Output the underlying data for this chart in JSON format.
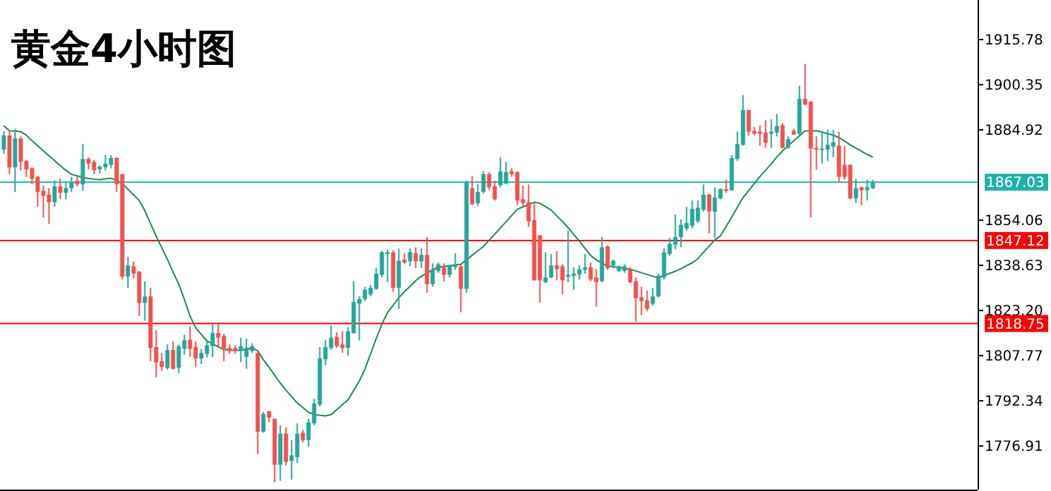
{
  "chart_data": {
    "type": "candlestick",
    "title": "黄金4小时图",
    "categories": [
      null,
      null,
      null,
      null,
      null,
      null,
      null,
      null,
      null,
      null,
      null,
      null,
      null,
      null,
      null,
      null,
      null,
      null,
      null,
      null,
      null,
      null,
      null,
      null,
      null,
      null,
      null,
      null,
      null,
      null,
      null,
      null,
      null,
      null,
      null,
      null,
      null,
      null,
      null,
      null,
      null,
      null,
      null,
      null,
      null,
      null,
      null,
      null,
      null,
      null,
      null,
      null,
      null,
      null,
      null,
      null,
      null,
      null,
      null,
      null,
      null,
      null,
      null,
      null,
      null,
      null,
      null,
      null,
      null,
      null,
      null,
      null,
      null,
      null,
      null,
      null,
      null,
      null,
      null,
      null,
      null,
      null,
      null,
      null,
      null,
      null,
      null,
      null,
      null,
      null,
      null,
      null,
      null,
      null,
      null,
      null,
      null,
      null,
      null,
      null,
      null,
      null,
      null,
      null,
      null,
      null,
      null,
      null,
      null,
      null,
      null,
      null,
      null,
      null,
      null,
      null,
      null,
      null,
      null,
      null,
      null,
      null,
      null,
      null,
      null,
      null,
      null,
      null,
      null,
      null,
      null,
      null,
      null,
      null,
      null,
      null,
      null,
      null,
      null,
      null,
      null,
      null,
      null,
      null,
      null,
      null,
      null,
      null,
      null,
      null,
      null,
      null,
      null,
      null,
      null
    ],
    "ohlc": [
      [
        1878.2,
        1884.5,
        1876.7,
        1883.0
      ],
      [
        1883.0,
        1884.6,
        1869.8,
        1872.1
      ],
      [
        1872.1,
        1885.3,
        1863.7,
        1882.0
      ],
      [
        1882.0,
        1882.7,
        1871.1,
        1874.0
      ],
      [
        1874.3,
        1874.7,
        1868.9,
        1871.4
      ],
      [
        1871.8,
        1872.1,
        1866.3,
        1868.2
      ],
      [
        1868.9,
        1869.2,
        1858.6,
        1863.7
      ],
      [
        1864.1,
        1866.0,
        1855.0,
        1862.4
      ],
      [
        1862.8,
        1865.0,
        1852.8,
        1860.2
      ],
      [
        1860.2,
        1867.6,
        1858.6,
        1865.6
      ],
      [
        1865.6,
        1868.2,
        1861.2,
        1863.4
      ],
      [
        1863.4,
        1867.2,
        1861.2,
        1865.0
      ],
      [
        1865.0,
        1868.9,
        1863.7,
        1866.9
      ],
      [
        1867.6,
        1869.2,
        1865.6,
        1866.3
      ],
      [
        1866.3,
        1880.1,
        1864.1,
        1875.0
      ],
      [
        1875.0,
        1875.6,
        1871.4,
        1873.4
      ],
      [
        1874.0,
        1874.7,
        1869.8,
        1871.1
      ],
      [
        1871.4,
        1872.7,
        1870.1,
        1872.4
      ],
      [
        1872.1,
        1876.3,
        1871.1,
        1873.4
      ],
      [
        1873.0,
        1876.3,
        1871.8,
        1875.3
      ],
      [
        1875.3,
        1875.6,
        1863.7,
        1866.3
      ],
      [
        1869.8,
        1869.8,
        1833.8,
        1834.8
      ],
      [
        1834.8,
        1841.5,
        1830.9,
        1838.6
      ],
      [
        1838.3,
        1839.9,
        1834.2,
        1835.8
      ],
      [
        1836.4,
        1836.7,
        1821.3,
        1825.8
      ],
      [
        1825.8,
        1833.2,
        1819.7,
        1828.0
      ],
      [
        1828.0,
        1830.9,
        1805.9,
        1810.4
      ],
      [
        1810.7,
        1816.5,
        1800.4,
        1805.5
      ],
      [
        1805.9,
        1808.7,
        1802.6,
        1803.9
      ],
      [
        1803.6,
        1811.6,
        1803.0,
        1809.7
      ],
      [
        1809.7,
        1812.6,
        1803.0,
        1803.3
      ],
      [
        1803.6,
        1811.6,
        1801.7,
        1811.0
      ],
      [
        1810.1,
        1814.9,
        1808.1,
        1813.0
      ],
      [
        1813.2,
        1817.8,
        1807.4,
        1810.1
      ],
      [
        1810.7,
        1812.6,
        1803.9,
        1806.8
      ],
      [
        1806.8,
        1810.0,
        1804.9,
        1808.7
      ],
      [
        1808.4,
        1812.6,
        1807.2,
        1811.3
      ],
      [
        1811.0,
        1818.4,
        1807.2,
        1815.5
      ],
      [
        1815.5,
        1818.4,
        1810.4,
        1813.9
      ],
      [
        1814.5,
        1815.2,
        1805.9,
        1810.1
      ],
      [
        1810.4,
        1811.6,
        1808.4,
        1809.4
      ],
      [
        1810.4,
        1811.3,
        1808.4,
        1809.4
      ],
      [
        1809.4,
        1813.9,
        1805.5,
        1811.0
      ],
      [
        1807.4,
        1813.6,
        1803.3,
        1810.4
      ],
      [
        1809.4,
        1812.0,
        1808.7,
        1811.0
      ],
      [
        1808.7,
        1808.7,
        1774.2,
        1781.8
      ],
      [
        1781.8,
        1788.6,
        1781.4,
        1787.9
      ],
      [
        1788.8,
        1788.8,
        1785.0,
        1786.6
      ],
      [
        1786.2,
        1786.2,
        1764.5,
        1770.5
      ],
      [
        1770.5,
        1784.0,
        1765.0,
        1781.1
      ],
      [
        1781.1,
        1783.3,
        1770.2,
        1771.5
      ],
      [
        1771.8,
        1778.9,
        1765.4,
        1773.7
      ],
      [
        1773.1,
        1784.6,
        1771.1,
        1781.1
      ],
      [
        1781.4,
        1782.4,
        1778.2,
        1778.9
      ],
      [
        1778.9,
        1786.2,
        1776.6,
        1785.0
      ],
      [
        1784.6,
        1793.0,
        1784.0,
        1791.4
      ],
      [
        1791.1,
        1810.7,
        1790.4,
        1806.8
      ],
      [
        1806.5,
        1813.2,
        1804.5,
        1810.7
      ],
      [
        1810.4,
        1818.1,
        1809.7,
        1813.9
      ],
      [
        1814.2,
        1815.8,
        1810.4,
        1811.0
      ],
      [
        1811.6,
        1816.1,
        1808.7,
        1810.4
      ],
      [
        1810.4,
        1817.4,
        1807.8,
        1816.1
      ],
      [
        1815.5,
        1833.2,
        1815.2,
        1826.1
      ],
      [
        1825.5,
        1828.0,
        1813.0,
        1827.1
      ],
      [
        1827.1,
        1831.3,
        1826.4,
        1830.3
      ],
      [
        1828.7,
        1831.9,
        1828.0,
        1830.9
      ],
      [
        1830.6,
        1837.7,
        1830.3,
        1835.8
      ],
      [
        1835.4,
        1843.5,
        1834.5,
        1843.1
      ],
      [
        1842.5,
        1844.1,
        1832.9,
        1843.1
      ],
      [
        1843.1,
        1843.8,
        1829.6,
        1830.9
      ],
      [
        1830.9,
        1844.4,
        1823.8,
        1840.2
      ],
      [
        1840.6,
        1842.8,
        1839.0,
        1839.6
      ],
      [
        1840.0,
        1844.4,
        1838.3,
        1843.1
      ],
      [
        1842.8,
        1844.8,
        1837.7,
        1840.0
      ],
      [
        1840.0,
        1844.4,
        1837.7,
        1842.2
      ],
      [
        1842.2,
        1848.3,
        1829.3,
        1832.2
      ],
      [
        1832.2,
        1839.3,
        1831.3,
        1837.3
      ],
      [
        1836.7,
        1839.6,
        1836.1,
        1839.0
      ],
      [
        1838.3,
        1839.3,
        1833.2,
        1835.4
      ],
      [
        1835.4,
        1839.0,
        1834.5,
        1838.6
      ],
      [
        1838.0,
        1842.8,
        1837.1,
        1838.6
      ],
      [
        1838.3,
        1839.0,
        1822.6,
        1830.6
      ],
      [
        1830.6,
        1867.6,
        1829.3,
        1866.9
      ],
      [
        1865.0,
        1869.2,
        1859.2,
        1859.5
      ],
      [
        1859.9,
        1866.3,
        1858.9,
        1863.7
      ],
      [
        1863.7,
        1870.8,
        1863.1,
        1869.8
      ],
      [
        1869.8,
        1870.5,
        1864.3,
        1865.3
      ],
      [
        1865.6,
        1867.6,
        1860.8,
        1861.2
      ],
      [
        1866.0,
        1875.6,
        1865.3,
        1870.8
      ],
      [
        1866.6,
        1874.0,
        1866.3,
        1870.5
      ],
      [
        1870.8,
        1871.8,
        1868.9,
        1869.8
      ],
      [
        1870.5,
        1870.8,
        1859.2,
        1860.8
      ],
      [
        1861.2,
        1866.0,
        1858.6,
        1859.9
      ],
      [
        1860.2,
        1866.3,
        1851.8,
        1853.7
      ],
      [
        1854.1,
        1860.2,
        1833.5,
        1833.5
      ],
      [
        1848.9,
        1848.9,
        1825.8,
        1833.5
      ],
      [
        1832.9,
        1843.1,
        1832.5,
        1834.5
      ],
      [
        1834.5,
        1842.5,
        1834.2,
        1838.6
      ],
      [
        1838.6,
        1843.5,
        1833.5,
        1837.3
      ],
      [
        1838.3,
        1839.0,
        1828.7,
        1833.5
      ],
      [
        1834.8,
        1850.5,
        1832.9,
        1835.4
      ],
      [
        1835.1,
        1838.0,
        1830.3,
        1835.8
      ],
      [
        1835.4,
        1838.6,
        1833.8,
        1837.3
      ],
      [
        1837.1,
        1842.5,
        1835.8,
        1838.0
      ],
      [
        1838.0,
        1839.6,
        1833.2,
        1833.8
      ],
      [
        1834.5,
        1837.3,
        1824.5,
        1832.9
      ],
      [
        1833.2,
        1848.3,
        1832.9,
        1844.8
      ],
      [
        1845.1,
        1845.4,
        1837.1,
        1837.7
      ],
      [
        1838.6,
        1840.6,
        1837.7,
        1840.2
      ],
      [
        1836.7,
        1838.6,
        1836.4,
        1838.3
      ],
      [
        1836.7,
        1839.0,
        1836.1,
        1838.3
      ],
      [
        1837.1,
        1838.0,
        1832.5,
        1832.9
      ],
      [
        1833.2,
        1834.5,
        1819.4,
        1827.4
      ],
      [
        1827.7,
        1831.3,
        1821.6,
        1826.4
      ],
      [
        1826.7,
        1830.0,
        1822.9,
        1823.8
      ],
      [
        1825.5,
        1830.9,
        1824.8,
        1828.0
      ],
      [
        1828.0,
        1835.8,
        1827.7,
        1835.1
      ],
      [
        1834.5,
        1844.4,
        1833.8,
        1843.1
      ],
      [
        1842.5,
        1848.0,
        1841.9,
        1846.0
      ],
      [
        1845.7,
        1856.0,
        1844.1,
        1848.3
      ],
      [
        1848.3,
        1854.4,
        1844.8,
        1852.5
      ],
      [
        1851.2,
        1858.6,
        1850.5,
        1853.1
      ],
      [
        1852.1,
        1860.8,
        1851.2,
        1857.9
      ],
      [
        1853.7,
        1860.8,
        1853.1,
        1858.3
      ],
      [
        1857.6,
        1866.3,
        1857.0,
        1862.8
      ],
      [
        1862.8,
        1863.1,
        1849.6,
        1857.0
      ],
      [
        1857.0,
        1865.3,
        1848.0,
        1861.8
      ],
      [
        1861.5,
        1865.0,
        1861.2,
        1864.7
      ],
      [
        1864.7,
        1867.9,
        1863.4,
        1864.1
      ],
      [
        1864.3,
        1876.3,
        1864.1,
        1875.3
      ],
      [
        1875.0,
        1884.3,
        1874.3,
        1880.1
      ],
      [
        1879.8,
        1896.8,
        1879.5,
        1891.7
      ],
      [
        1891.7,
        1891.7,
        1883.0,
        1884.3
      ],
      [
        1884.6,
        1885.9,
        1883.0,
        1883.6
      ],
      [
        1884.3,
        1886.5,
        1879.5,
        1883.6
      ],
      [
        1884.0,
        1888.2,
        1878.8,
        1880.5
      ],
      [
        1883.6,
        1888.5,
        1878.8,
        1884.3
      ],
      [
        1884.0,
        1890.4,
        1882.7,
        1886.2
      ],
      [
        1886.5,
        1887.2,
        1878.5,
        1878.8
      ],
      [
        1878.8,
        1882.7,
        1878.5,
        1881.7
      ],
      [
        1884.6,
        1885.3,
        1883.3,
        1883.3
      ],
      [
        1883.6,
        1900.0,
        1883.0,
        1895.5
      ],
      [
        1895.5,
        1907.5,
        1893.3,
        1893.6
      ],
      [
        1894.6,
        1894.6,
        1855.0,
        1878.5
      ],
      [
        1878.8,
        1882.7,
        1871.4,
        1878.2
      ],
      [
        1878.2,
        1884.3,
        1873.4,
        1878.5
      ],
      [
        1878.2,
        1884.9,
        1874.3,
        1879.8
      ],
      [
        1879.2,
        1884.9,
        1875.6,
        1880.7
      ],
      [
        1879.5,
        1884.3,
        1867.0,
        1868.9
      ],
      [
        1873.0,
        1879.5,
        1867.9,
        1868.9
      ],
      [
        1873.0,
        1873.0,
        1861.2,
        1861.5
      ],
      [
        1861.5,
        1868.2,
        1859.9,
        1865.0
      ],
      [
        1865.3,
        1865.6,
        1859.2,
        1864.3
      ],
      [
        1864.3,
        1867.9,
        1860.8,
        1865.3
      ],
      [
        1865.0,
        1867.9,
        1864.7,
        1867.0
      ]
    ],
    "series": [
      {
        "type": "line",
        "color": "#1e8a4c",
        "values": [
          1886.3,
          1884.6,
          1884.5,
          1884.3,
          1883.1,
          1881.2,
          1879.5,
          1877.8,
          1876.1,
          1874.4,
          1872.7,
          1871.1,
          1869.7,
          1869.2,
          1868.7,
          1868.3,
          1868.1,
          1867.9,
          1868.2,
          1868.4,
          1867.7,
          1866.6,
          1864.6,
          1862.7,
          1860.8,
          1857.3,
          1852.9,
          1848.6,
          1844.6,
          1840.6,
          1836.3,
          1832.2,
          1827.0,
          1821.3,
          1817.3,
          1815.0,
          1812.8,
          1811.8,
          1810.8,
          1809.9,
          1809.6,
          1809.6,
          1809.6,
          1809.9,
          1810.5,
          1809.4,
          1806.4,
          1803.8,
          1801.1,
          1798.4,
          1796.0,
          1793.8,
          1791.6,
          1790.0,
          1788.4,
          1787.7,
          1787.4,
          1787.2,
          1787.6,
          1789.3,
          1791.0,
          1792.7,
          1795.9,
          1799.1,
          1803.2,
          1808.4,
          1813.6,
          1818.5,
          1822.5,
          1825.0,
          1827.6,
          1829.6,
          1831.5,
          1833.4,
          1834.9,
          1836.0,
          1837.1,
          1838.0,
          1838.3,
          1838.5,
          1838.8,
          1839.0,
          1840.5,
          1842.1,
          1843.6,
          1845.1,
          1847.2,
          1849.3,
          1851.4,
          1853.5,
          1855.7,
          1857.8,
          1858.6,
          1859.4,
          1860.2,
          1859.8,
          1858.7,
          1857.5,
          1855.5,
          1853.6,
          1851.5,
          1849.2,
          1846.9,
          1844.4,
          1842.0,
          1840.5,
          1839.4,
          1838.4,
          1838.2,
          1837.9,
          1837.6,
          1837.3,
          1836.7,
          1836.1,
          1835.5,
          1834.9,
          1834.4,
          1835.1,
          1835.9,
          1836.6,
          1837.5,
          1838.5,
          1839.5,
          1840.9,
          1843.1,
          1845.2,
          1847.3,
          1848.7,
          1851.9,
          1855.2,
          1858.5,
          1861.8,
          1864.2,
          1866.6,
          1869.0,
          1871.1,
          1873.3,
          1875.7,
          1877.7,
          1879.5,
          1881.2,
          1882.9,
          1884.6,
          1884.6,
          1884.6,
          1884.2,
          1883.6,
          1883.1,
          1882.3,
          1881.1,
          1879.8,
          1878.7,
          1877.6,
          1876.5,
          1875.6
        ]
      }
    ],
    "ylim": [
      1762.0,
      1929.3
    ],
    "yticks": [
      1776.91,
      1792.34,
      1807.77,
      {
        "value": 1823.2,
        "label": "1823.20"
      },
      1838.63,
      1854.06,
      1884.92,
      1900.35,
      1915.78
    ],
    "tick_labels": "y",
    "ref_lines": [
      {
        "axis": "y",
        "value": 1867.03,
        "label": "1867.03",
        "color": "#20b2aa"
      },
      {
        "axis": "y",
        "value": 1847.12,
        "label": "1847.12",
        "color": "#ff0000"
      },
      {
        "axis": "y",
        "value": 1818.75,
        "label": "1818.75",
        "color": "#ff0000"
      }
    ]
  }
}
